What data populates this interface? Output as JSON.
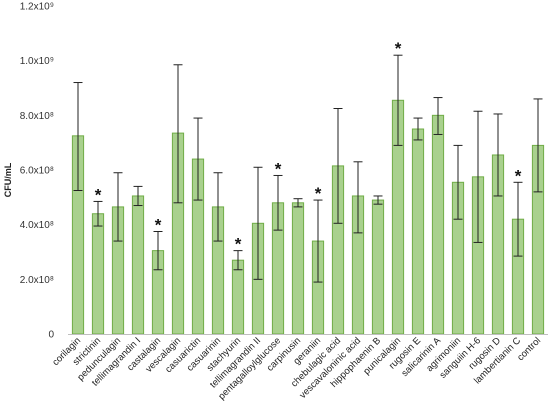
{
  "chart_data": {
    "type": "bar",
    "ylabel": "CFU/mL",
    "ylim": [
      0,
      1200000000
    ],
    "ytick_values": [
      0,
      200000000,
      400000000,
      600000000,
      800000000,
      1000000000,
      1200000000
    ],
    "ytick_labels": [
      "0",
      "2.0x10⁸",
      "4.0x10⁸",
      "6.0x10⁸",
      "8.0x10⁸",
      "1.0x10⁹",
      "1.2x10⁹"
    ],
    "grid": false,
    "bar_color": "#a9d18e",
    "bar_edge_color": "#70ad47",
    "categories": [
      "corilagin",
      "strictinin",
      "pedunculagin",
      "tellimagrandin I",
      "castalagin",
      "vescalagin",
      "casuarictin",
      "casuarinin",
      "stachyurin",
      "tellimagrandin II",
      "pentagalloylglucose",
      "carpinusin",
      "geraniin",
      "chebulagic acid",
      "vescavaloninic acid",
      "hippophaenin B",
      "punicalagin",
      "rugosin E",
      "salicarinin A",
      "agrimoniin",
      "sanguiin H-6",
      "rugosin D",
      "lambertianin C",
      "control"
    ],
    "values": [
      725000000,
      440000000,
      465000000,
      505000000,
      305000000,
      735000000,
      640000000,
      465000000,
      270000000,
      405000000,
      480000000,
      480000000,
      340000000,
      615000000,
      505000000,
      490000000,
      855000000,
      750000000,
      800000000,
      555000000,
      575000000,
      655000000,
      420000000,
      690000000
    ],
    "error_low": [
      525000000,
      395000000,
      340000000,
      470000000,
      235000000,
      480000000,
      490000000,
      340000000,
      235000000,
      200000000,
      380000000,
      465000000,
      190000000,
      405000000,
      370000000,
      475000000,
      690000000,
      710000000,
      730000000,
      420000000,
      335000000,
      505000000,
      285000000,
      520000000
    ],
    "error_high": [
      920000000,
      485000000,
      590000000,
      540000000,
      375000000,
      985000000,
      790000000,
      590000000,
      305000000,
      610000000,
      580000000,
      495000000,
      490000000,
      825000000,
      630000000,
      505000000,
      1020000000,
      790000000,
      865000000,
      690000000,
      815000000,
      805000000,
      555000000,
      860000000
    ],
    "significant": [
      false,
      true,
      false,
      false,
      true,
      false,
      false,
      false,
      true,
      false,
      true,
      false,
      true,
      false,
      false,
      false,
      true,
      false,
      false,
      false,
      false,
      false,
      true,
      false
    ],
    "significance_marker": "*"
  }
}
